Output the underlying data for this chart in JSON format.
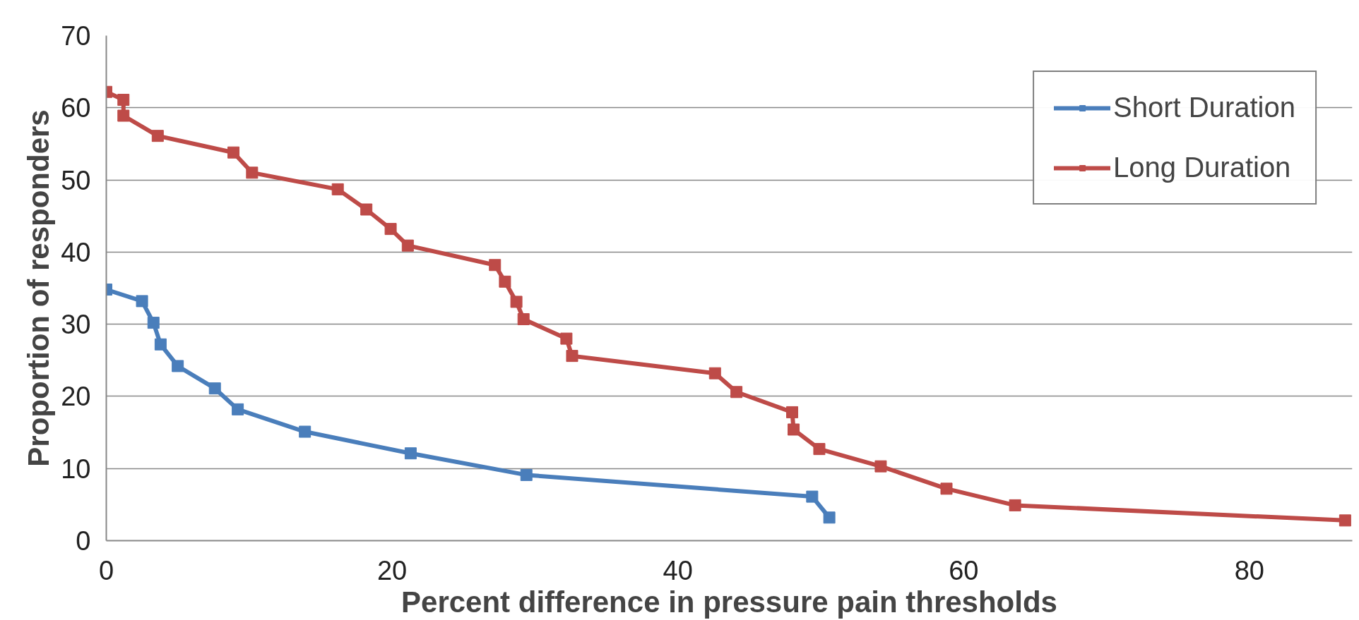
{
  "chart_data": {
    "type": "line",
    "xlabel": "Percent difference in pressure pain thresholds",
    "ylabel": "Proportion of responders",
    "xlim": [
      0,
      87.2
    ],
    "xticks": [
      0,
      20,
      40,
      60,
      80
    ],
    "ylim": [
      0,
      70
    ],
    "yticks": [
      0,
      10,
      20,
      30,
      40,
      50,
      60,
      70
    ],
    "grid": "y",
    "legend": "top right",
    "marker": "square",
    "line_style": "solid",
    "series": [
      {
        "name": "Short Duration",
        "color": "#4a7ebb",
        "x": [
          0,
          2.5,
          3.3,
          3.8,
          5.0,
          7.6,
          9.2,
          13.9,
          21.3,
          29.4,
          49.4,
          50.6
        ],
        "values": [
          34.8,
          33.2,
          30.2,
          27.2,
          24.2,
          21.1,
          18.2,
          15.1,
          12.1,
          9.1,
          6.1,
          3.2
        ]
      },
      {
        "name": "Long Duration",
        "color": "#be4b48",
        "x": [
          0,
          1.2,
          1.2,
          3.6,
          8.9,
          10.2,
          16.2,
          18.2,
          19.9,
          21.1,
          27.2,
          27.9,
          28.7,
          29.2,
          32.2,
          32.6,
          42.6,
          44.1,
          48.0,
          48.1,
          49.9,
          54.2,
          58.8,
          63.6,
          86.7
        ],
        "values": [
          62.2,
          61.1,
          58.9,
          56.1,
          53.8,
          51.0,
          48.7,
          45.9,
          43.2,
          40.9,
          38.2,
          35.9,
          33.1,
          30.7,
          28.0,
          25.6,
          23.2,
          20.6,
          17.8,
          15.4,
          12.7,
          10.3,
          7.2,
          4.9,
          2.8
        ]
      }
    ]
  }
}
